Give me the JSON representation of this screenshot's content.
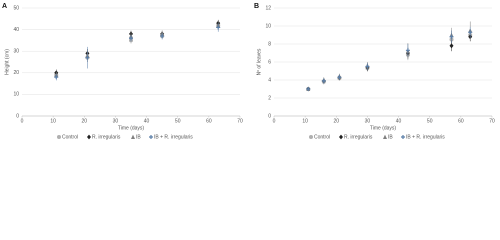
{
  "chart_data": [
    {
      "type": "scatter",
      "title": "A",
      "x_label": "Time (days)",
      "y_label": "Height (cm)",
      "x": [
        11,
        21,
        35,
        45,
        63
      ],
      "xlim": [
        0,
        70
      ],
      "xticks": [
        0,
        10,
        20,
        30,
        40,
        50,
        60,
        70
      ],
      "ylim": [
        0,
        50
      ],
      "yticks": [
        0,
        10,
        20,
        30,
        40,
        50
      ],
      "grid": true,
      "series": [
        {
          "name": "Control",
          "color": "#b0b0b0",
          "marker": "circle",
          "values": [
            19,
            27,
            35,
            37,
            42
          ],
          "errors": [
            1.5,
            2,
            1.5,
            1.5,
            2
          ]
        },
        {
          "name": "R. irregularis",
          "color": "#222222",
          "marker": "diamond",
          "values": [
            20,
            29,
            38,
            38,
            43
          ],
          "errors": [
            1.5,
            2,
            1.5,
            1.5,
            1.5
          ]
        },
        {
          "name": "IB",
          "color": "#808080",
          "marker": "triangle",
          "values": [
            19,
            28,
            37,
            38,
            42
          ],
          "errors": [
            1.5,
            3,
            1.5,
            1.5,
            2
          ]
        },
        {
          "name": "IB + R. irregularis",
          "color": "#5a7ea8",
          "marker": "cross",
          "values": [
            18,
            27,
            36,
            37,
            41
          ],
          "errors": [
            1.5,
            5,
            1.5,
            1.5,
            2
          ]
        }
      ]
    },
    {
      "type": "scatter",
      "title": "B",
      "x_label": "Time (days)",
      "y_label": "Nº of leaves",
      "x": [
        11,
        16,
        21,
        30,
        43,
        57,
        63
      ],
      "xlim": [
        0,
        70
      ],
      "xticks": [
        0,
        10,
        20,
        30,
        40,
        50,
        60,
        70
      ],
      "ylim": [
        0,
        12
      ],
      "yticks": [
        0,
        2,
        4,
        6,
        8,
        10,
        12
      ],
      "grid": true,
      "series": [
        {
          "name": "Control",
          "color": "#b0b0b0",
          "marker": "circle",
          "values": [
            3,
            3.8,
            4.2,
            5.3,
            6.8,
            8.5,
            9.0
          ],
          "errors": [
            0.1,
            0.3,
            0.3,
            0.4,
            0.6,
            0.6,
            0.5
          ]
        },
        {
          "name": "R. irregularis",
          "color": "#222222",
          "marker": "diamond",
          "values": [
            3,
            3.9,
            4.3,
            5.4,
            7.0,
            7.8,
            8.8
          ],
          "errors": [
            0.1,
            0.3,
            0.3,
            0.4,
            0.6,
            0.6,
            0.5
          ]
        },
        {
          "name": "IB",
          "color": "#808080",
          "marker": "triangle",
          "values": [
            3,
            4.0,
            4.4,
            5.6,
            7.2,
            9.0,
            9.5
          ],
          "errors": [
            0.1,
            0.3,
            0.3,
            0.4,
            0.9,
            0.8,
            1.0
          ]
        },
        {
          "name": "IB + R. irregularis",
          "color": "#5a7ea8",
          "marker": "cross",
          "values": [
            3,
            3.9,
            4.3,
            5.5,
            7.3,
            8.8,
            9.3
          ],
          "errors": [
            0.1,
            0.3,
            0.3,
            0.4,
            0.7,
            0.7,
            0.6
          ]
        }
      ]
    }
  ]
}
